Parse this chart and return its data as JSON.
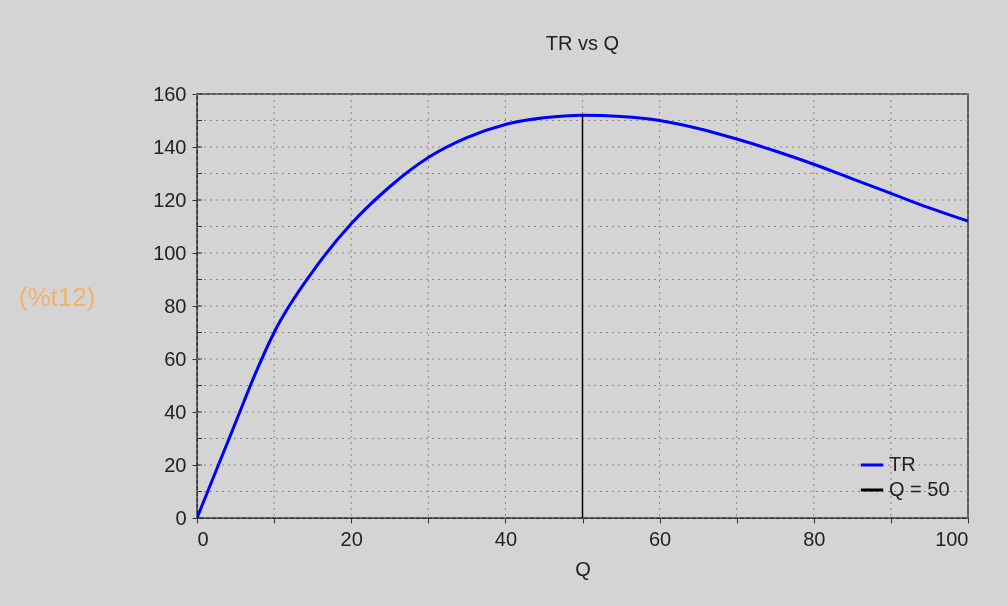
{
  "chart_data": {
    "type": "line",
    "title": "TR vs Q",
    "xlabel": "Q",
    "annotations": [
      "(%t12)"
    ],
    "xlim": [
      0,
      100
    ],
    "ylim": [
      0,
      160
    ],
    "xticks": [
      0,
      {
        "value": 10,
        "label": null
      },
      20,
      {
        "value": 30,
        "label": null
      },
      40,
      {
        "value": 50,
        "label": null
      },
      60,
      {
        "value": 70,
        "label": null
      },
      80,
      {
        "value": 90,
        "label": null
      },
      100
    ],
    "yticks": [
      0,
      {
        "value": 10,
        "label": null
      },
      20,
      {
        "value": 30,
        "label": null
      },
      40,
      {
        "value": 50,
        "label": null
      },
      60,
      {
        "value": 70,
        "label": null
      },
      80,
      {
        "value": 90,
        "label": null
      },
      100,
      {
        "value": 110,
        "label": null
      },
      120,
      {
        "value": 130,
        "label": null
      },
      140,
      {
        "value": 150,
        "label": null
      },
      160
    ],
    "grid": true,
    "legend": "bottom right",
    "marker": "none",
    "line_style": "solid",
    "series": [
      {
        "name": "TR",
        "color": "#0000ff",
        "x": [
          0,
          2.5,
          5,
          7.5,
          10,
          15,
          20,
          25,
          30,
          35,
          40,
          45,
          50,
          55,
          60,
          65,
          70,
          75,
          80,
          85,
          90,
          95,
          100
        ],
        "values": [
          0,
          18,
          36,
          54,
          70,
          93,
          111,
          125,
          136,
          143.5,
          148.5,
          151,
          152,
          151.5,
          150,
          147,
          143,
          138.5,
          133.5,
          128,
          122.5,
          117,
          112
        ]
      },
      {
        "name": "Q = 50",
        "color": "#000000",
        "x": [
          50,
          50
        ],
        "values": [
          0,
          152
        ]
      }
    ]
  }
}
